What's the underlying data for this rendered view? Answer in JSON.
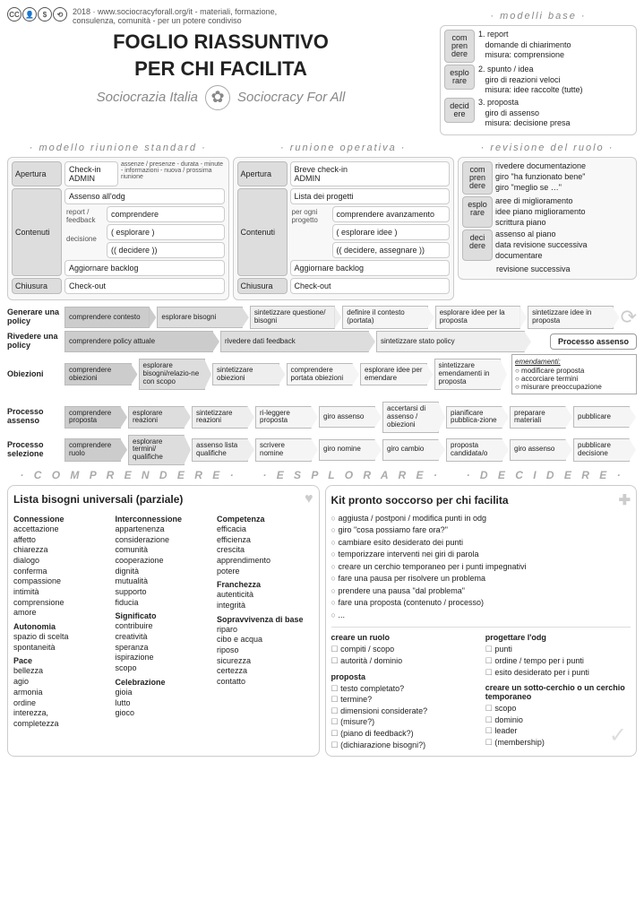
{
  "cc": {
    "year": "2018",
    "url": "www.sociocracyforall.org/it",
    "desc": "- materiali, formazione,\nconsulenza, comunità - per un potere condiviso"
  },
  "title_l1": "FOGLIO RIASSUNTIVO",
  "title_l2": "PER CHI FACILITA",
  "org_left": "Sociocrazia Italia",
  "org_right": "Sociocracy For All",
  "sect_modelli": "·  modelli base  ·",
  "modelli": [
    {
      "tag": "com\npren\ndere",
      "n": "1.",
      "t": "report",
      "a": "domande di chiarimento",
      "m": "misura: comprensione"
    },
    {
      "tag": "esplo\nrare",
      "n": "2.",
      "t": "spunto / idea",
      "a": "giro di reazioni veloci",
      "m": "misura: idee raccolte (tutte)"
    },
    {
      "tag": "decid\nere",
      "n": "3.",
      "t": "proposta",
      "a": "giro di assenso",
      "m": "misura: decisione presa"
    }
  ],
  "sect_std": "· modello riunione standard ·",
  "sect_op": "· runione operativa ·",
  "sect_rev": "· revisione del ruolo ·",
  "std": {
    "apertura": "Apertura",
    "contenuti": "Contenuti",
    "chiusura": "Chiusura",
    "checkin": "Check-in\nADMIN",
    "admin_note": "assenze / presenze - durata - minute - informazioni - nuova / prossima riunione",
    "assenso": "Assenso all'odg",
    "side1": "report / feedback",
    "side2": "decisione",
    "c1": "comprendere",
    "c2": "( esplorare )",
    "c3": "(( decidere ))",
    "backlog": "Aggiornare backlog",
    "checkout": "Check-out"
  },
  "op": {
    "checkin": "Breve check-in\nADMIN",
    "lista": "Lista dei progetti",
    "side": "per ogni progetto",
    "c1": "comprendere avanzamento",
    "c2": "( esplorare idee )",
    "c3": "(( decidere, assegnare ))",
    "backlog": "Aggiornare backlog",
    "checkout": "Check-out"
  },
  "rev": [
    {
      "tag": "com\npren\ndere",
      "lines": [
        "rivedere documentazione",
        "giro \"ha funzionato bene\"",
        "giro \"meglio se …\""
      ]
    },
    {
      "tag": "esplo\nrare",
      "lines": [
        "aree di miglioramento",
        "idee piano miglioramento",
        "scrittura piano"
      ]
    },
    {
      "tag": "deci\ndere",
      "lines": [
        "assenso al piano",
        "data revisione successiva",
        "documentare"
      ]
    }
  ],
  "rev_footer": "revisione successiva",
  "flows": [
    {
      "label": "Generare una policy",
      "steps": [
        [
          "comprendere contesto",
          "d1"
        ],
        [
          "esplorare bisogni",
          "d2"
        ],
        [
          "sintetizzare questione/ bisogni",
          "d3"
        ],
        [
          "definire il contesto (portata)",
          "d4"
        ],
        [
          "esplorare idee per la proposta",
          "d4"
        ],
        [
          "sintetizzare idee in proposta",
          "d4"
        ]
      ],
      "suffix": "cycle"
    },
    {
      "label": "Rivedere una policy",
      "steps": [
        [
          "comprendere policy attuale",
          "d1"
        ],
        [
          "rivedere dati feedback",
          "d2"
        ],
        [
          "sintetizzare stato policy",
          "d3"
        ]
      ],
      "suffix": "processo"
    },
    {
      "label": "Obiezioni",
      "steps": [
        [
          "comprendere obiezioni",
          "d1"
        ],
        [
          "esplorare bisogni/relazio-ne con scopo",
          "d2"
        ],
        [
          "sintetizzare obiezioni",
          "d3"
        ],
        [
          "comprendere portata obiezioni",
          "d4"
        ],
        [
          "esplorare idee per emendare",
          "d4"
        ],
        [
          "sintetizzare emendamenti in proposta",
          "d4"
        ]
      ],
      "suffix": "emend"
    },
    {
      "label": "Processo assenso",
      "steps": [
        [
          "comprendere proposta",
          "d1"
        ],
        [
          "esplorare reazioni",
          "d2"
        ],
        [
          "sintetizzare reazioni",
          "d3"
        ],
        [
          "ri-leggere proposta",
          "d4"
        ],
        [
          "giro assenso",
          "d4"
        ],
        [
          "accertarsi di assenso / obiezioni",
          "d4"
        ],
        [
          "pianificare pubblica-zione",
          "d4"
        ],
        [
          "preparare materiali",
          "d4"
        ],
        [
          "pubblicare",
          "d4"
        ]
      ]
    },
    {
      "label": "Processo selezione",
      "steps": [
        [
          "comprendere ruolo",
          "d1"
        ],
        [
          "esplorare termini/ qualifiche",
          "d2"
        ],
        [
          "assenso lista qualifiche",
          "d3"
        ],
        [
          "scrivere nomine",
          "d4"
        ],
        [
          "giro nomine",
          "d4"
        ],
        [
          "giro cambio",
          "d4"
        ],
        [
          "proposta candidata/o",
          "d4"
        ],
        [
          "giro assenso",
          "d4"
        ],
        [
          "pubblicare decisione",
          "d4"
        ]
      ]
    }
  ],
  "processo_assenso": "Processo assenso",
  "emend": {
    "title": "emendamenti:",
    "l1": "modificare proposta",
    "l2": "accorciare termini",
    "l3": "misurare preoccupazione"
  },
  "phases": [
    "· C O M P R E N D E R E ·",
    "· E S P L O R A R E ·",
    "· D E C I D E R E ·"
  ],
  "needs_title": "Lista bisogni universali  (parziale)",
  "needs": [
    {
      "h": "Connessione",
      "items": [
        "accettazione",
        "affetto",
        "chiarezza",
        "dialogo",
        "conferma",
        "compassione",
        "intimità",
        "comprensione",
        "amore"
      ]
    },
    {
      "h": "Autonomia",
      "items": [
        "spazio di scelta",
        "spontaneità"
      ]
    },
    {
      "h": "Pace",
      "items": [
        "bellezza",
        "agio",
        "armonia",
        "ordine",
        "interezza,",
        "  completezza"
      ]
    },
    {
      "h": "Interconnessione",
      "items": [
        "appartenenza",
        "considerazione",
        "comunità",
        "cooperazione",
        "dignità",
        "mutualità",
        "supporto",
        "fiducia"
      ]
    },
    {
      "h": "Significato",
      "items": [
        "contribuire",
        "creatività",
        "speranza",
        "ispirazione",
        "scopo"
      ]
    },
    {
      "h": "Celebrazione",
      "items": [
        "gioia",
        "lutto",
        "gioco"
      ]
    },
    {
      "h": "Competenza",
      "items": [
        "efficacia",
        "efficienza",
        "crescita",
        "apprendimento",
        "potere"
      ]
    },
    {
      "h": "Franchezza",
      "items": [
        "autenticità",
        "integrità"
      ]
    },
    {
      "h": "Sopravvivenza di base",
      "items": [
        "riparo",
        "cibo e acqua",
        "riposo",
        "sicurezza",
        "certezza",
        "contatto"
      ]
    }
  ],
  "kit_title": "Kit pronto soccorso per chi facilita",
  "kit": [
    "aggiusta / postponi / modifica punti in odg",
    "giro \"cosa possiamo fare ora?\"",
    "cambiare esito desiderato dei punti",
    "temporizzare interventi nei giri di parola",
    "creare un cerchio temporaneo per i punti impegnativi",
    "fare una pausa per risolvere un problema",
    "prendere una pausa \"dal problema\"",
    "fare una proposta (contenuto / processo)",
    "..."
  ],
  "checks": [
    {
      "h": "creare un ruolo",
      "items": [
        "compiti / scopo",
        "autorità / dominio"
      ]
    },
    {
      "h": "proposta",
      "items": [
        "testo completato?",
        "termine?",
        "dimensioni considerate?",
        "(misure?)",
        "(piano di feedback?)",
        "(dichiarazione bisogni?)"
      ]
    },
    {
      "h": "progettare l'odg",
      "items": [
        "punti",
        "ordine / tempo per i punti",
        "esito desiderato per i punti"
      ]
    },
    {
      "h": "creare un sotto-cerchio o un cerchio temporaneo",
      "items": [
        "scopo",
        "dominio",
        "leader",
        "(membership)"
      ]
    }
  ]
}
